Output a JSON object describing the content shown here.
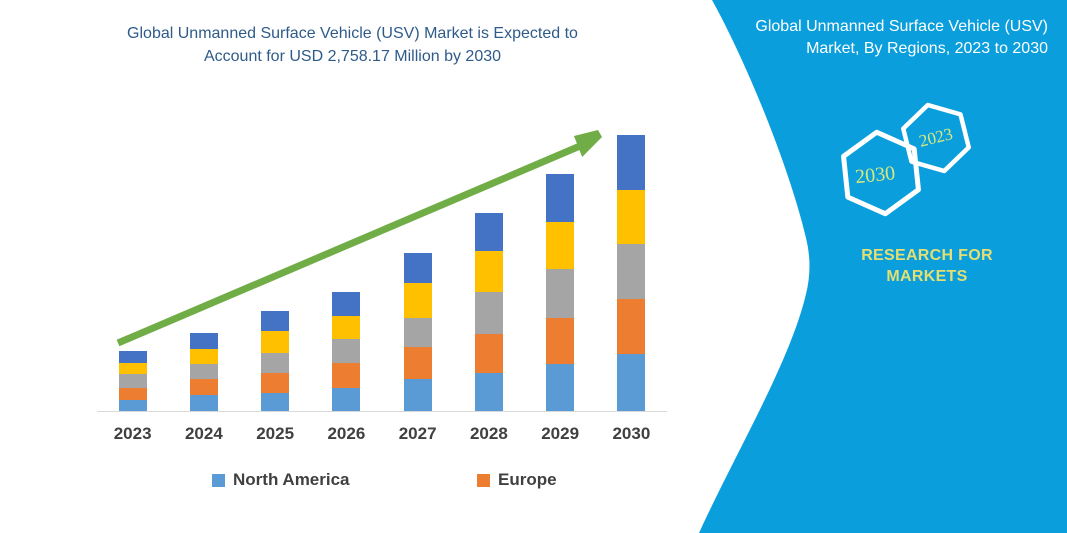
{
  "header": {
    "title_line1": "Global Unmanned Surface Vehicle (USV) Market is Expected to",
    "title_line2": "Account for USD 2,758.17 Million by 2030",
    "title_color": "#2E5B8A"
  },
  "chart_data": {
    "type": "bar",
    "stacked": true,
    "title": "Global Unmanned Surface Vehicle (USV) Market is Expected to Account for USD 2,758.17 Million by 2030",
    "unit": "USD Million",
    "categories": [
      "2023",
      "2024",
      "2025",
      "2026",
      "2027",
      "2028",
      "2029",
      "2030"
    ],
    "series": [
      {
        "name": "North America",
        "color": "#5B9BD5",
        "values": [
          110,
          157,
          183,
          233,
          317,
          383,
          467,
          567
        ]
      },
      {
        "name": "Europe",
        "color": "#ED7D31",
        "values": [
          123,
          167,
          200,
          250,
          323,
          383,
          467,
          550
        ]
      },
      {
        "name": "",
        "color": "#A5A5A5",
        "values": [
          133,
          150,
          200,
          233,
          293,
          427,
          483,
          550
        ]
      },
      {
        "name": "",
        "color": "#FFC000",
        "values": [
          117,
          150,
          217,
          233,
          350,
          407,
          477,
          545
        ]
      },
      {
        "name": "",
        "color": "#4472C4",
        "values": [
          117,
          157,
          200,
          243,
          300,
          377,
          473,
          546.17
        ]
      }
    ],
    "totals_estimated": [
      600,
      781,
      1000,
      1192,
      1583,
      1977,
      2367,
      2758.17
    ],
    "legend": [
      {
        "label": "North America",
        "color": "#5B9BD5"
      },
      {
        "label": "Europe",
        "color": "#ED7D31"
      }
    ],
    "legend_position": "bottom",
    "grid": false,
    "y_axis_visible": false,
    "x_axis_color": "#D9D9D9",
    "annotations": [
      {
        "type": "arrow",
        "description": "green upward trend arrow across bars",
        "color": "#70AD47"
      }
    ]
  },
  "side_panel": {
    "background": "#0A9FDC",
    "title_line1": "Global Unmanned Surface Vehicle (USV)",
    "title_line2": "Market, By Regions, 2023 to 2030",
    "hexagon_large_label": "2030",
    "hexagon_small_label": "2023",
    "hexagon_label_color": "#D9E87E",
    "brand_line1": "RESEARCH FOR",
    "brand_line2": "MARKETS",
    "brand_color": "#E5DF72"
  }
}
